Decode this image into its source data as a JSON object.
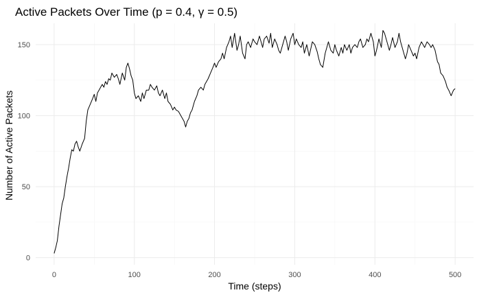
{
  "chart_data": {
    "type": "line",
    "title": "Active Packets Over Time (p = 0.4, γ = 0.5)",
    "xlabel": "Time (steps)",
    "ylabel": "Number of Active Packets",
    "xlim": [
      -23,
      523
    ],
    "ylim": [
      -5,
      165
    ],
    "x_ticks": [
      0,
      100,
      200,
      300,
      400,
      500
    ],
    "y_ticks": [
      0,
      50,
      100,
      150
    ],
    "grid": true,
    "legend": "none",
    "line_color": "#000000",
    "series": [
      {
        "x": [
          0,
          2,
          4,
          6,
          8,
          10,
          12,
          14,
          16,
          18,
          20,
          22,
          24,
          26,
          28,
          30,
          32,
          35,
          38,
          40,
          42,
          45,
          48,
          50,
          52,
          54,
          56,
          58,
          60,
          62,
          64,
          66,
          68,
          70,
          72,
          75,
          78,
          80,
          82,
          85,
          88,
          90,
          92,
          94,
          96,
          98,
          100,
          102,
          105,
          108,
          110,
          112,
          115,
          118,
          120,
          122,
          125,
          128,
          130,
          132,
          135,
          138,
          140,
          142,
          145,
          148,
          150,
          152,
          155,
          158,
          160,
          162,
          164,
          166,
          168,
          170,
          172,
          175,
          178,
          180,
          183,
          186,
          188,
          190,
          192,
          195,
          198,
          200,
          202,
          205,
          208,
          210,
          212,
          215,
          218,
          220,
          222,
          225,
          228,
          230,
          232,
          235,
          238,
          240,
          242,
          245,
          248,
          250,
          253,
          256,
          258,
          260,
          262,
          265,
          268,
          270,
          272,
          275,
          278,
          280,
          282,
          285,
          288,
          290,
          292,
          295,
          298,
          300,
          302,
          305,
          308,
          310,
          312,
          315,
          318,
          320,
          322,
          325,
          328,
          330,
          332,
          335,
          338,
          340,
          342,
          345,
          348,
          350,
          352,
          355,
          358,
          360,
          362,
          365,
          368,
          370,
          372,
          375,
          378,
          380,
          382,
          385,
          388,
          390,
          392,
          395,
          398,
          400,
          402,
          405,
          408,
          410,
          412,
          415,
          418,
          420,
          422,
          425,
          428,
          430,
          432,
          435,
          438,
          440,
          442,
          445,
          448,
          450,
          452,
          455,
          458,
          460,
          462,
          465,
          468,
          470,
          472,
          475,
          478,
          480,
          482,
          485,
          488,
          490,
          492,
          495,
          498,
          500
        ],
        "y": [
          3,
          7,
          12,
          22,
          30,
          38,
          42,
          50,
          57,
          63,
          70,
          76,
          75,
          80,
          82,
          78,
          75,
          80,
          84,
          96,
          104,
          108,
          112,
          115,
          110,
          116,
          118,
          120,
          122,
          120,
          124,
          122,
          126,
          125,
          130,
          127,
          129,
          126,
          122,
          130,
          125,
          134,
          137,
          133,
          128,
          125,
          116,
          112,
          114,
          110,
          116,
          112,
          118,
          118,
          122,
          120,
          118,
          121,
          116,
          114,
          118,
          112,
          116,
          110,
          108,
          104,
          106,
          104,
          103,
          100,
          98,
          96,
          92,
          96,
          98,
          102,
          104,
          110,
          114,
          118,
          120,
          118,
          122,
          124,
          126,
          130,
          134,
          137,
          134,
          138,
          140,
          144,
          140,
          148,
          152,
          156,
          148,
          158,
          146,
          150,
          156,
          144,
          140,
          150,
          152,
          148,
          154,
          152,
          150,
          156,
          152,
          148,
          154,
          156,
          151,
          158,
          148,
          154,
          150,
          146,
          144,
          150,
          156,
          152,
          146,
          154,
          158,
          150,
          154,
          150,
          148,
          152,
          144,
          150,
          142,
          147,
          152,
          150,
          145,
          140,
          136,
          134,
          144,
          148,
          152,
          146,
          144,
          150,
          146,
          142,
          148,
          144,
          150,
          146,
          150,
          144,
          148,
          150,
          148,
          152,
          154,
          148,
          150,
          154,
          152,
          158,
          152,
          142,
          146,
          154,
          148,
          160,
          158,
          152,
          146,
          150,
          155,
          148,
          152,
          158,
          152,
          146,
          140,
          144,
          150,
          146,
          142,
          144,
          140,
          148,
          152,
          150,
          148,
          152,
          150,
          148,
          150,
          146,
          138,
          136,
          130,
          128,
          124,
          120,
          118,
          114,
          118,
          119
        ]
      }
    ]
  }
}
